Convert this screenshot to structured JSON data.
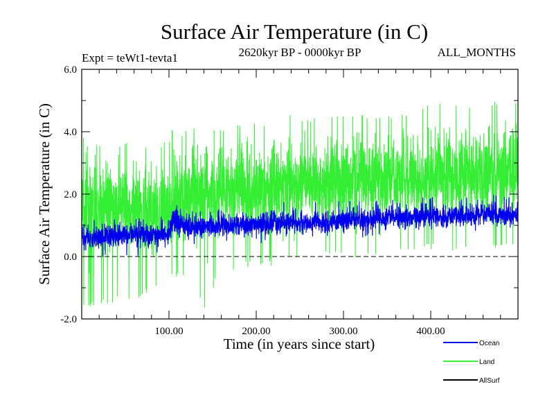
{
  "chart_data": {
    "type": "line",
    "title": "Surface Air Temperature (in C)",
    "subtitle_left": "Expt = teWt1-tevta1",
    "subtitle_center": "2620kyr BP - 0000kyr BP",
    "subtitle_right": "ALL_MONTHS",
    "xlabel": "Time (in years since start)",
    "ylabel": "Surface Air Temperature (in C)",
    "xlim": [
      0,
      500
    ],
    "ylim": [
      -2.0,
      6.0
    ],
    "x_ticks": [
      100,
      200,
      300,
      400
    ],
    "x_tick_labels": [
      "100.00",
      "200.00",
      "300.00",
      "400.00"
    ],
    "y_ticks": [
      -2,
      0,
      2,
      4,
      6
    ],
    "y_tick_labels": [
      "-2.0",
      "0.0",
      "2.0",
      "4.0",
      "6.0"
    ],
    "reference_line": 0.0,
    "series": [
      {
        "name": "Land",
        "color": "#33ee33",
        "x": [
          0,
          20,
          40,
          60,
          80,
          100,
          104,
          120,
          140,
          160,
          180,
          200,
          220,
          240,
          260,
          280,
          300,
          320,
          340,
          360,
          380,
          400,
          420,
          440,
          460,
          480,
          500
        ],
        "mean": [
          1.55,
          1.6,
          1.55,
          1.55,
          1.5,
          1.5,
          1.95,
          1.95,
          1.95,
          2.05,
          2.1,
          2.15,
          2.2,
          2.3,
          2.3,
          2.35,
          2.4,
          2.45,
          2.45,
          2.5,
          2.55,
          2.6,
          2.65,
          2.65,
          2.7,
          2.75,
          2.75
        ],
        "min": [
          -1.7,
          -1.6,
          -1.5,
          -1.4,
          -1.2,
          -1.0,
          -0.6,
          -0.8,
          -1.7,
          -0.5,
          -0.4,
          -0.3,
          -0.3,
          -0.2,
          -0.1,
          0.0,
          0.0,
          0.0,
          0.1,
          0.2,
          0.2,
          0.2,
          0.2,
          0.2,
          0.3,
          0.3,
          0.3
        ],
        "max": [
          3.9,
          3.8,
          3.6,
          3.7,
          3.7,
          3.7,
          4.1,
          4.1,
          4.2,
          4.2,
          4.2,
          4.3,
          4.3,
          4.6,
          4.4,
          4.5,
          4.6,
          4.7,
          4.6,
          4.6,
          4.8,
          5.0,
          5.0,
          5.0,
          5.0,
          5.1,
          4.9
        ]
      },
      {
        "name": "Ocean",
        "color": "#0000ee",
        "x": [
          0,
          20,
          40,
          60,
          80,
          100,
          104,
          120,
          140,
          160,
          180,
          200,
          220,
          240,
          260,
          280,
          300,
          320,
          340,
          360,
          380,
          400,
          420,
          440,
          460,
          480,
          500
        ],
        "mean": [
          0.6,
          0.65,
          0.7,
          0.7,
          0.7,
          0.75,
          1.2,
          1.0,
          0.95,
          1.0,
          1.0,
          1.0,
          1.05,
          1.1,
          1.1,
          1.1,
          1.2,
          1.2,
          1.2,
          1.25,
          1.25,
          1.3,
          1.3,
          1.3,
          1.35,
          1.35,
          1.35
        ],
        "min": [
          -0.2,
          -0.1,
          -0.1,
          0.0,
          0.0,
          0.2,
          0.4,
          0.4,
          0.4,
          0.5,
          0.5,
          0.4,
          0.5,
          0.6,
          0.6,
          0.6,
          0.7,
          0.6,
          0.7,
          0.7,
          0.7,
          0.8,
          0.8,
          0.8,
          0.8,
          0.9,
          0.9
        ],
        "max": [
          1.1,
          1.2,
          1.2,
          1.2,
          1.3,
          1.3,
          1.8,
          1.7,
          1.6,
          1.6,
          1.6,
          1.6,
          1.7,
          1.8,
          1.7,
          1.8,
          1.8,
          1.8,
          1.8,
          1.9,
          1.9,
          1.9,
          2.0,
          1.9,
          2.0,
          2.0,
          1.9
        ]
      },
      {
        "name": "AllSurf",
        "color": "#000000"
      }
    ],
    "legend": {
      "placement": "bottom-right",
      "entries": [
        "Ocean",
        "Land",
        "AllSurf"
      ]
    }
  }
}
